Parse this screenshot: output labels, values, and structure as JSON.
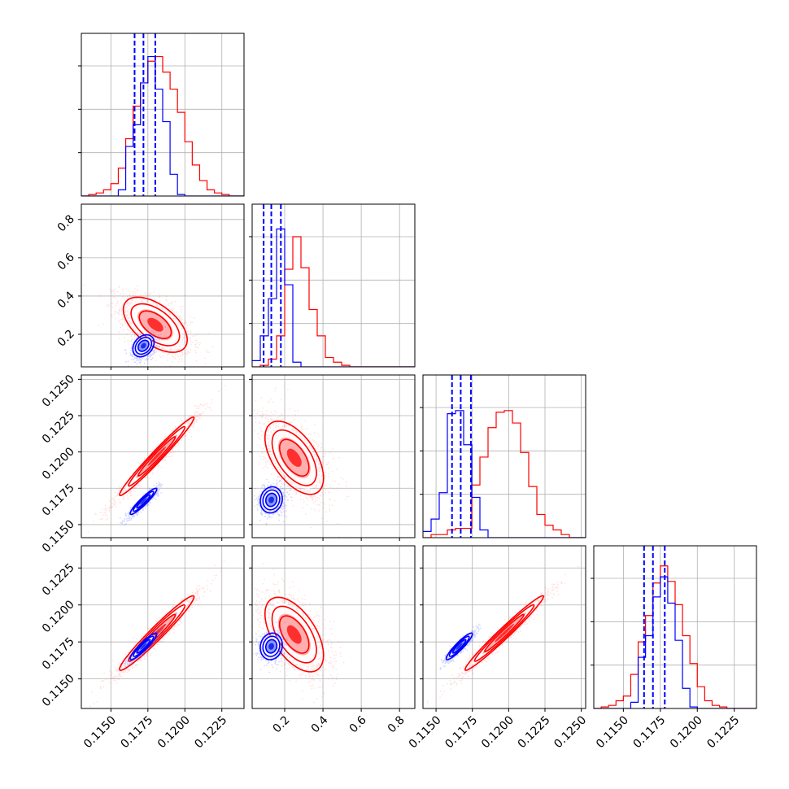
{
  "chart_data": {
    "type": "corner",
    "grid": true,
    "colors": {
      "series_a": "#ff0000",
      "series_b": "#0000ff"
    },
    "params": [
      {
        "range": [
          0.113,
          0.124
        ],
        "ticks": [
          0.115,
          0.1175,
          0.12,
          0.1225
        ],
        "tick_labels": [
          "0.1150",
          "0.1175",
          "0.1200",
          "0.1225"
        ]
      },
      {
        "range": [
          0.03,
          0.88
        ],
        "ticks": [
          0.2,
          0.4,
          0.6,
          0.8
        ],
        "tick_labels": [
          "0.2",
          "0.4",
          "0.6",
          "0.8"
        ]
      },
      {
        "range": [
          0.1141,
          0.1253
        ],
        "ticks": [
          0.115,
          0.1175,
          0.12,
          0.1225,
          0.125
        ],
        "tick_labels": [
          "0.1150",
          "0.1175",
          "0.1200",
          "0.1225",
          "0.1250"
        ]
      },
      {
        "range": [
          0.113,
          0.124
        ],
        "ticks": [
          0.115,
          0.1175,
          0.12,
          0.1225
        ],
        "tick_labels": [
          "0.1150",
          "0.1175",
          "0.1200",
          "0.1225"
        ]
      }
    ],
    "hist_ylim": [
      0,
      1.05
    ],
    "hist_ticks": [
      0.28,
      0.56,
      0.84
    ],
    "histograms": [
      {
        "param": 0,
        "bin_edges": [
          0.113,
          0.1135,
          0.114,
          0.1145,
          0.115,
          0.1155,
          0.116,
          0.1165,
          0.117,
          0.1175,
          0.118,
          0.1185,
          0.119,
          0.1195,
          0.12,
          0.1205,
          0.121,
          0.1215,
          0.122,
          0.1225,
          0.123,
          0.1235,
          0.124
        ],
        "series_a": [
          0.0,
          0.01,
          0.02,
          0.04,
          0.08,
          0.18,
          0.37,
          0.58,
          0.73,
          0.87,
          0.9,
          0.8,
          0.69,
          0.54,
          0.35,
          0.2,
          0.1,
          0.04,
          0.02,
          0.01,
          0.0,
          0.0
        ],
        "series_b": [
          0.0,
          0.0,
          0.0,
          0.0,
          0.0,
          0.04,
          0.32,
          0.46,
          0.73,
          0.9,
          0.69,
          0.48,
          0.14,
          0.01,
          0.0,
          0.0,
          0.0,
          0.0,
          0.0,
          0.0,
          0.0,
          0.0
        ],
        "quantiles_b": [
          0.1166,
          0.1172,
          0.118
        ]
      },
      {
        "param": 1,
        "bin_edges": [
          0.03,
          0.0725,
          0.115,
          0.1575,
          0.2,
          0.2425,
          0.285,
          0.3275,
          0.37,
          0.4125,
          0.455,
          0.4975,
          0.54,
          0.5825,
          0.625,
          0.6675,
          0.71,
          0.7525,
          0.795,
          0.8375,
          0.88
        ],
        "series_a": [
          0.0,
          0.01,
          0.05,
          0.2,
          0.63,
          0.84,
          0.64,
          0.37,
          0.2,
          0.06,
          0.03,
          0.01,
          0.0,
          0.0,
          0.0,
          0.0,
          0.0,
          0.0,
          0.0,
          0.0
        ],
        "series_b": [
          0.04,
          0.2,
          0.44,
          0.89,
          0.53,
          0.03,
          0.0,
          0.0,
          0.0,
          0.0,
          0.0,
          0.0,
          0.0,
          0.0,
          0.0,
          0.0,
          0.0,
          0.0,
          0.0,
          0.0
        ],
        "quantiles_b": [
          0.09,
          0.13,
          0.18
        ]
      },
      {
        "param": 2,
        "bin_edges": [
          0.1141,
          0.11466,
          0.11522,
          0.11578,
          0.11634,
          0.1169,
          0.11746,
          0.11802,
          0.11858,
          0.11914,
          0.1197,
          0.12026,
          0.12082,
          0.12138,
          0.12194,
          0.1225,
          0.12306,
          0.12362,
          0.12418,
          0.12474,
          0.1253
        ],
        "series_a": [
          0.0,
          0.02,
          0.02,
          0.05,
          0.06,
          0.06,
          0.34,
          0.52,
          0.71,
          0.81,
          0.82,
          0.74,
          0.55,
          0.33,
          0.15,
          0.08,
          0.05,
          0.02,
          0.0,
          0.0
        ],
        "series_b": [
          0.04,
          0.12,
          0.29,
          0.8,
          0.82,
          0.6,
          0.26,
          0.05,
          0.0,
          0.0,
          0.0,
          0.0,
          0.0,
          0.0,
          0.0,
          0.0,
          0.0,
          0.0,
          0.0,
          0.0
        ],
        "quantiles_b": [
          0.1161,
          0.1167,
          0.1174
        ]
      },
      {
        "param": 3,
        "bin_edges": [
          0.113,
          0.1135,
          0.114,
          0.1145,
          0.115,
          0.1155,
          0.116,
          0.1165,
          0.117,
          0.1175,
          0.118,
          0.1185,
          0.119,
          0.1195,
          0.12,
          0.1205,
          0.121,
          0.1215,
          0.122,
          0.1225,
          0.123,
          0.1235,
          0.124
        ],
        "series_a": [
          0.0,
          0.01,
          0.02,
          0.05,
          0.08,
          0.22,
          0.43,
          0.6,
          0.81,
          0.92,
          0.82,
          0.67,
          0.47,
          0.29,
          0.14,
          0.05,
          0.02,
          0.01,
          0.0,
          0.0,
          0.0,
          0.0
        ],
        "series_b": [
          0.0,
          0.0,
          0.0,
          0.0,
          0.0,
          0.04,
          0.33,
          0.47,
          0.72,
          0.85,
          0.68,
          0.44,
          0.13,
          0.01,
          0.0,
          0.0,
          0.0,
          0.0,
          0.0,
          0.0,
          0.0,
          0.0
        ],
        "quantiles_b": [
          0.1164,
          0.117,
          0.1178
        ]
      }
    ],
    "panels_2d": [
      {
        "x_param": 0,
        "y_param": 1,
        "series_a": {
          "center": [
            0.118,
            0.25
          ],
          "sigma": [
            0.0012,
            0.08
          ],
          "rho": -0.55,
          "n_points": 1600
        },
        "series_b": {
          "center": [
            0.1172,
            0.14
          ],
          "sigma": [
            0.0004,
            0.032
          ],
          "rho": 0.3,
          "n_points": 900
        }
      },
      {
        "x_param": 0,
        "y_param": 2,
        "series_a": {
          "center": [
            0.1181,
            0.1197
          ],
          "sigma": [
            0.0014,
            0.0015
          ],
          "rho": 0.98,
          "n_points": 1600
        },
        "series_b": {
          "center": [
            0.1172,
            0.1166
          ],
          "sigma": [
            0.0005,
            0.0005
          ],
          "rho": 0.93,
          "n_points": 900
        }
      },
      {
        "x_param": 1,
        "y_param": 2,
        "series_a": {
          "center": [
            0.25,
            0.1196
          ],
          "sigma": [
            0.085,
            0.0014
          ],
          "rho": -0.55,
          "n_points": 1600
        },
        "series_b": {
          "center": [
            0.13,
            0.1167
          ],
          "sigma": [
            0.032,
            0.0005
          ],
          "rho": 0.1,
          "n_points": 900
        }
      },
      {
        "x_param": 0,
        "y_param": 3,
        "series_a": {
          "center": [
            0.1181,
            0.1181
          ],
          "sigma": [
            0.0014,
            0.0014
          ],
          "rho": 0.97,
          "n_points": 1600
        },
        "series_b": {
          "center": [
            0.1172,
            0.1172
          ],
          "sigma": [
            0.0005,
            0.0005
          ],
          "rho": 0.92,
          "n_points": 900
        }
      },
      {
        "x_param": 1,
        "y_param": 3,
        "series_a": {
          "center": [
            0.25,
            0.118
          ],
          "sigma": [
            0.085,
            0.0014
          ],
          "rho": -0.55,
          "n_points": 1600
        },
        "series_b": {
          "center": [
            0.13,
            0.1172
          ],
          "sigma": [
            0.032,
            0.0005
          ],
          "rho": 0.1,
          "n_points": 900
        }
      },
      {
        "x_param": 2,
        "y_param": 3,
        "series_a": {
          "center": [
            0.1197,
            0.1181
          ],
          "sigma": [
            0.0015,
            0.0014
          ],
          "rho": 0.98,
          "n_points": 1600
        },
        "series_b": {
          "center": [
            0.1166,
            0.1172
          ],
          "sigma": [
            0.0005,
            0.0005
          ],
          "rho": 0.92,
          "n_points": 900
        }
      }
    ]
  }
}
